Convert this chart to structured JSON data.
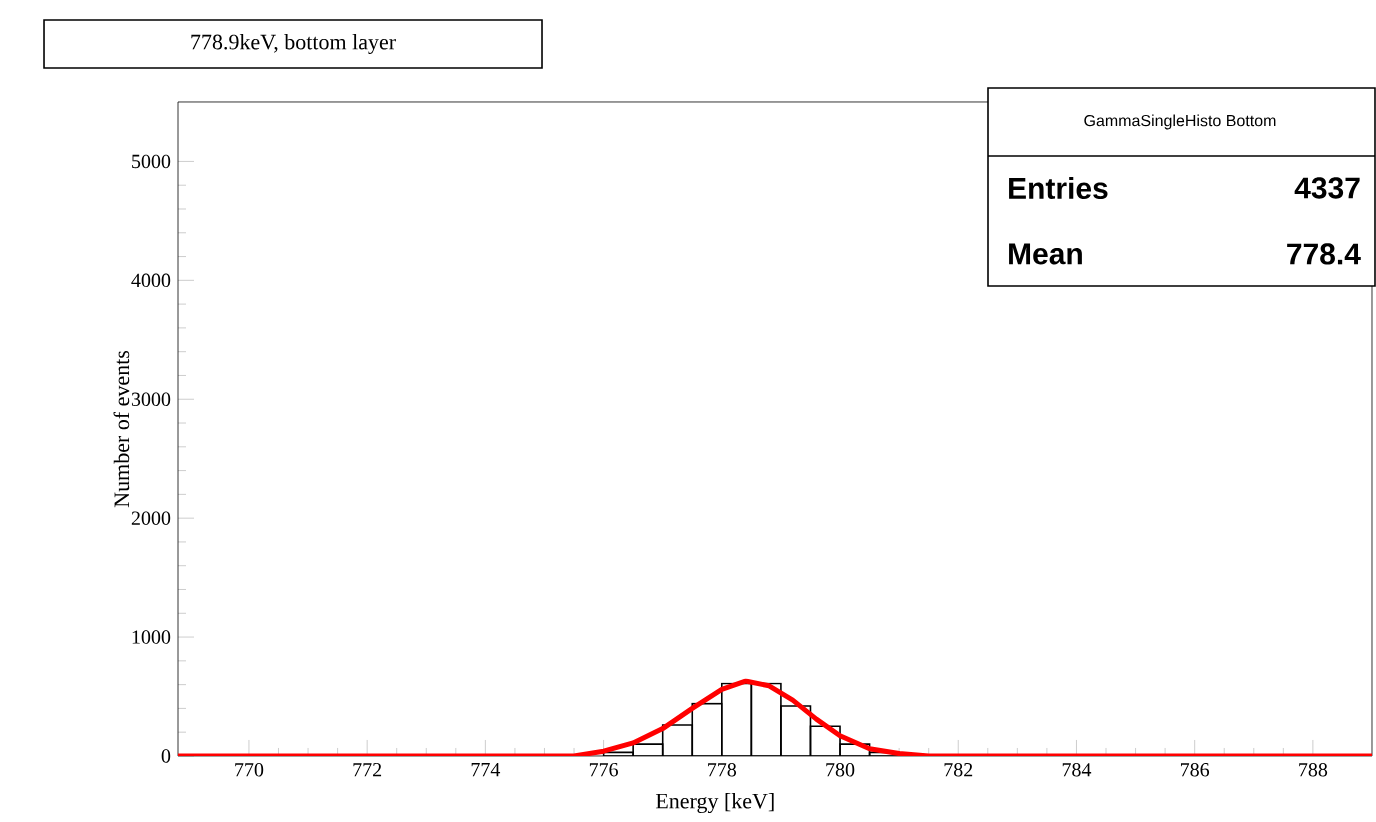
{
  "chart_data": {
    "type": "histogram",
    "title": "778.9keV, bottom layer",
    "xlabel": "Energy [keV]",
    "ylabel": "Number of events",
    "bins": [
      776.0,
      776.5,
      777.0,
      777.5,
      778.0,
      778.5,
      779.0,
      779.5,
      780.0,
      780.5,
      781.0
    ],
    "values": [
      30,
      100,
      260,
      440,
      610,
      610,
      420,
      250,
      100,
      30
    ],
    "color": "#000000",
    "series": [
      {
        "type": "line",
        "color": "#ff0000",
        "x": [
          768.8,
          775.5,
          776.0,
          776.5,
          777.0,
          777.5,
          778.0,
          778.4,
          778.8,
          779.2,
          779.6,
          780.0,
          780.5,
          781.0,
          781.5,
          789.0
        ],
        "values": [
          0,
          0,
          40,
          110,
          230,
          400,
          560,
          630,
          590,
          470,
          310,
          170,
          60,
          20,
          0,
          0
        ]
      }
    ],
    "xlim": [
      768.8,
      789.0
    ],
    "ylim": [
      0,
      5500
    ],
    "xticks": [
      770,
      772,
      774,
      776,
      778,
      780,
      782,
      784,
      786,
      788
    ],
    "yticks": [
      0,
      1000,
      2000,
      3000,
      4000,
      5000
    ],
    "annotations": [
      "GammaSingleHisto Bottom",
      "Entries",
      "4337",
      "Mean",
      "778.4"
    ]
  }
}
